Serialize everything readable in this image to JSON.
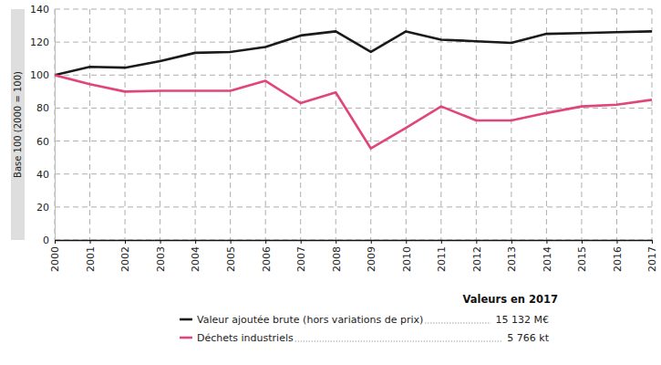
{
  "chart_data": {
    "type": "line",
    "ylabel": "Base 100 (2000 = 100)",
    "x": [
      2000,
      2001,
      2002,
      2003,
      2004,
      2005,
      2006,
      2007,
      2008,
      2009,
      2010,
      2011,
      2012,
      2013,
      2014,
      2015,
      2016,
      2017
    ],
    "xlim": [
      2000,
      2017
    ],
    "xticks": [
      2000,
      2001,
      2002,
      2003,
      2004,
      2005,
      2006,
      2007,
      2008,
      2009,
      2010,
      2011,
      2012,
      2013,
      2014,
      2015,
      2016,
      2017
    ],
    "ylim": [
      0,
      140
    ],
    "yticks": [
      0,
      20,
      40,
      60,
      80,
      100,
      120,
      140
    ],
    "grid": true,
    "legend": "bottom",
    "legend_title": "Valeurs en 2017",
    "series": [
      {
        "name": "Valeur ajoutée brute (hors variations de prix)",
        "legend_value": "15 132 M€",
        "color": "#1a1a1a",
        "values": [
          100,
          105,
          104.5,
          108.5,
          113.5,
          114,
          117,
          124,
          126.5,
          114,
          126.5,
          121.5,
          120.5,
          119.5,
          125,
          125.5,
          126,
          126.5
        ]
      },
      {
        "name": "Déchets industriels",
        "legend_value": "5 766 kt",
        "color": "#e0457b",
        "values": [
          100,
          94.5,
          90,
          90.5,
          90.5,
          90.5,
          96.5,
          83,
          89.5,
          55.5,
          68,
          81,
          72.5,
          72.5,
          77,
          81,
          82,
          85
        ]
      }
    ]
  }
}
